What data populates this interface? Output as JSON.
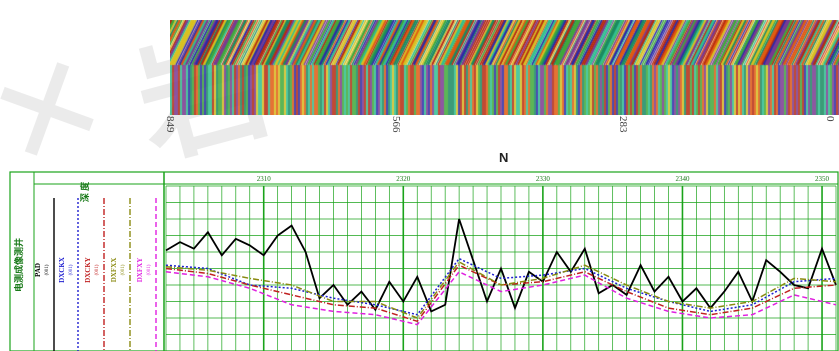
{
  "image_strip": {
    "scale_ticks": [
      "849",
      "566",
      "283",
      "0"
    ],
    "direction_label": "N"
  },
  "track_header": {
    "title": "电测成像测井",
    "curves": [
      {
        "name": "PAD",
        "unit": "(001)",
        "color": "#000000",
        "style": "solid"
      },
      {
        "name": "DXCKX",
        "unit": "(001)",
        "color": "#1f1fd0",
        "style": "dotted"
      },
      {
        "name": "DXCKY",
        "unit": "(001)",
        "color": "#c02020",
        "style": "dashdot"
      },
      {
        "name": "DXFXX",
        "unit": "(001)",
        "color": "#8a8a10",
        "style": "dashdot"
      },
      {
        "name": "DXFXY",
        "unit": "(001)",
        "color": "#e020e0",
        "style": "dashed"
      }
    ],
    "depth_label": "深 度"
  },
  "colors": {
    "grid": "#1aa31a",
    "image_red": "#b52a10",
    "image_green": "#3fa83a",
    "image_blue": "#2a2aa8",
    "image_yellow": "#d8c020"
  },
  "chart_data": {
    "type": "line",
    "x_label": "depth",
    "xlim": [
      2303,
      2351
    ],
    "x_ticks": [
      2310,
      2320,
      2330,
      2340,
      2350
    ],
    "series": [
      {
        "name": "PAD",
        "values": [
          [
            2303,
            61
          ],
          [
            2304,
            66
          ],
          [
            2305,
            62
          ],
          [
            2306,
            72
          ],
          [
            2307,
            58
          ],
          [
            2308,
            68
          ],
          [
            2309,
            64
          ],
          [
            2310,
            58
          ],
          [
            2311,
            70
          ],
          [
            2312,
            76
          ],
          [
            2313,
            60
          ],
          [
            2314,
            32
          ],
          [
            2315,
            40
          ],
          [
            2316,
            28
          ],
          [
            2317,
            36
          ],
          [
            2318,
            25
          ],
          [
            2319,
            42
          ],
          [
            2320,
            30
          ],
          [
            2321,
            45
          ],
          [
            2322,
            24
          ],
          [
            2323,
            28
          ],
          [
            2324,
            80
          ],
          [
            2325,
            55
          ],
          [
            2326,
            30
          ],
          [
            2327,
            50
          ],
          [
            2328,
            26
          ],
          [
            2329,
            48
          ],
          [
            2330,
            42
          ],
          [
            2331,
            60
          ],
          [
            2332,
            48
          ],
          [
            2333,
            62
          ],
          [
            2334,
            35
          ],
          [
            2335,
            40
          ],
          [
            2336,
            34
          ],
          [
            2337,
            52
          ],
          [
            2338,
            36
          ],
          [
            2339,
            45
          ],
          [
            2340,
            30
          ],
          [
            2341,
            38
          ],
          [
            2342,
            26
          ],
          [
            2343,
            36
          ],
          [
            2344,
            48
          ],
          [
            2345,
            30
          ],
          [
            2346,
            55
          ],
          [
            2347,
            48
          ],
          [
            2348,
            40
          ],
          [
            2349,
            38
          ],
          [
            2350,
            62
          ],
          [
            2351,
            40
          ]
        ]
      },
      {
        "name": "DXCKX",
        "values": [
          [
            2303,
            52
          ],
          [
            2306,
            50
          ],
          [
            2309,
            40
          ],
          [
            2312,
            38
          ],
          [
            2315,
            32
          ],
          [
            2318,
            28
          ],
          [
            2321,
            22
          ],
          [
            2324,
            56
          ],
          [
            2327,
            44
          ],
          [
            2330,
            46
          ],
          [
            2333,
            50
          ],
          [
            2336,
            38
          ],
          [
            2339,
            30
          ],
          [
            2342,
            24
          ],
          [
            2345,
            28
          ],
          [
            2348,
            42
          ],
          [
            2351,
            44
          ]
        ]
      },
      {
        "name": "DXCKY",
        "values": [
          [
            2303,
            50
          ],
          [
            2306,
            47
          ],
          [
            2309,
            40
          ],
          [
            2312,
            34
          ],
          [
            2315,
            28
          ],
          [
            2318,
            26
          ],
          [
            2321,
            18
          ],
          [
            2324,
            52
          ],
          [
            2327,
            40
          ],
          [
            2330,
            42
          ],
          [
            2333,
            48
          ],
          [
            2336,
            36
          ],
          [
            2339,
            26
          ],
          [
            2342,
            22
          ],
          [
            2345,
            26
          ],
          [
            2348,
            38
          ],
          [
            2351,
            40
          ]
        ]
      },
      {
        "name": "DXFXX",
        "values": [
          [
            2303,
            51
          ],
          [
            2306,
            49
          ],
          [
            2309,
            44
          ],
          [
            2312,
            40
          ],
          [
            2315,
            30
          ],
          [
            2318,
            30
          ],
          [
            2321,
            20
          ],
          [
            2324,
            54
          ],
          [
            2327,
            40
          ],
          [
            2330,
            44
          ],
          [
            2333,
            52
          ],
          [
            2336,
            40
          ],
          [
            2339,
            30
          ],
          [
            2342,
            26
          ],
          [
            2345,
            30
          ],
          [
            2348,
            44
          ],
          [
            2351,
            42
          ]
        ]
      },
      {
        "name": "DXFXY",
        "values": [
          [
            2303,
            48
          ],
          [
            2306,
            45
          ],
          [
            2309,
            38
          ],
          [
            2312,
            28
          ],
          [
            2315,
            24
          ],
          [
            2318,
            22
          ],
          [
            2321,
            16
          ],
          [
            2324,
            48
          ],
          [
            2327,
            36
          ],
          [
            2330,
            40
          ],
          [
            2333,
            46
          ],
          [
            2336,
            32
          ],
          [
            2339,
            24
          ],
          [
            2342,
            20
          ],
          [
            2345,
            22
          ],
          [
            2348,
            34
          ],
          [
            2351,
            28
          ]
        ]
      }
    ],
    "ylim": [
      0,
      100
    ],
    "grid": true
  }
}
